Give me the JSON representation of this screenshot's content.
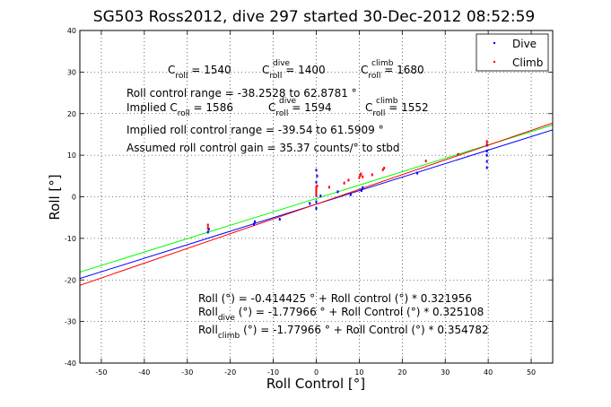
{
  "chart_data": {
    "type": "scatter",
    "title": "SG503 Ross2012, dive 297 started 30-Dec-2012 08:52:59",
    "xlabel": "Roll Control [°]",
    "ylabel": "Roll [°]",
    "xlim": [
      -55,
      55
    ],
    "ylim": [
      -40,
      40
    ],
    "xticks": [
      -50,
      -40,
      -30,
      -20,
      -10,
      0,
      10,
      20,
      30,
      40,
      50
    ],
    "yticks": [
      -40,
      -30,
      -20,
      -10,
      0,
      10,
      20,
      30,
      40
    ],
    "grid": true,
    "legend_position": "top-right",
    "series": [
      {
        "name": "Dive",
        "color": "#0000ff",
        "points": [
          [
            -25.2,
            -8.5
          ],
          [
            -25.0,
            -7.8
          ],
          [
            -14.5,
            -6.6
          ],
          [
            -14.3,
            -6.0
          ],
          [
            -8.5,
            -5.4
          ],
          [
            -1.5,
            -1.6
          ],
          [
            0.0,
            -2.8
          ],
          [
            0.0,
            -1.2
          ],
          [
            0.0,
            0.3
          ],
          [
            0.0,
            2.0
          ],
          [
            0.0,
            3.5
          ],
          [
            0.0,
            6.4
          ],
          [
            0.2,
            5.0
          ],
          [
            1.0,
            0.2
          ],
          [
            5.0,
            1.2
          ],
          [
            8.0,
            0.5
          ],
          [
            10.5,
            1.5
          ],
          [
            10.8,
            2.2
          ],
          [
            23.5,
            5.7
          ],
          [
            39.7,
            8.5
          ],
          [
            39.7,
            10.0
          ],
          [
            39.7,
            11.0
          ],
          [
            39.7,
            12.4
          ],
          [
            39.7,
            7.0
          ]
        ]
      },
      {
        "name": "Climb",
        "color": "#ff0000",
        "points": [
          [
            -25.2,
            -6.8
          ],
          [
            -25.2,
            -7.5
          ],
          [
            0.0,
            0.5
          ],
          [
            0.0,
            1.0
          ],
          [
            0.0,
            1.4
          ],
          [
            0.0,
            1.8
          ],
          [
            0.0,
            2.2
          ],
          [
            0.2,
            2.6
          ],
          [
            3.0,
            2.3
          ],
          [
            6.5,
            3.3
          ],
          [
            7.5,
            4.0
          ],
          [
            10.0,
            4.6
          ],
          [
            10.2,
            5.1
          ],
          [
            10.4,
            5.5
          ],
          [
            10.8,
            4.8
          ],
          [
            13.0,
            5.3
          ],
          [
            15.5,
            6.5
          ],
          [
            15.8,
            6.9
          ],
          [
            25.5,
            8.6
          ],
          [
            33.0,
            10.2
          ],
          [
            39.7,
            12.6
          ],
          [
            39.7,
            13.3
          ]
        ]
      }
    ],
    "fit_lines": [
      {
        "color": "#0000ff",
        "intercept": -1.77966,
        "slope": 0.325108
      },
      {
        "color": "#00ff00",
        "intercept": -0.414425,
        "slope": 0.321956
      },
      {
        "color": "#ff0000",
        "intercept": -1.77966,
        "slope": 0.354782
      }
    ],
    "annotations": {
      "c_roll": {
        "a": "C",
        "a_sub": "roll",
        "a_val": " = 1540"
      },
      "c_roll_dive": {
        "a": "C",
        "a_sub": "roll",
        "a_sup": "dive",
        "a_val": " = 1400"
      },
      "c_roll_climb": {
        "a": "C",
        "a_sub": "roll",
        "a_sup": "climb",
        "a_val": " = 1680"
      },
      "roll_control_range": "Roll control range = -38.2528 to 62.8781 °",
      "implied_c_roll": {
        "a": "Implied C",
        "a_sub": "roll",
        "a_val": " = 1586"
      },
      "implied_c_roll_dive": {
        "a": "C",
        "a_sub": "roll",
        "a_sup": "dive",
        "a_val": " = 1594"
      },
      "implied_c_roll_climb": {
        "a": "C",
        "a_sub": "roll",
        "a_sup": "climb",
        "a_val": " = 1552"
      },
      "implied_range": "Implied roll control range = -39.54 to 61.5909 °",
      "gain": "Assumed roll control gain = 35.37 counts/° to stbd",
      "fit_all": "Roll (°) = -0.414425 ° + Roll control (°) * 0.321956",
      "fit_dive": {
        "a": "Roll",
        "a_sub": "dive",
        "a_val": " (°) = -1.77966 ° + Roll Control (°) * 0.325108"
      },
      "fit_climb": {
        "a": "Roll",
        "a_sub": "climb",
        "a_val": " (°) = -1.77966 ° + Roll Control (°) * 0.354782"
      }
    }
  }
}
